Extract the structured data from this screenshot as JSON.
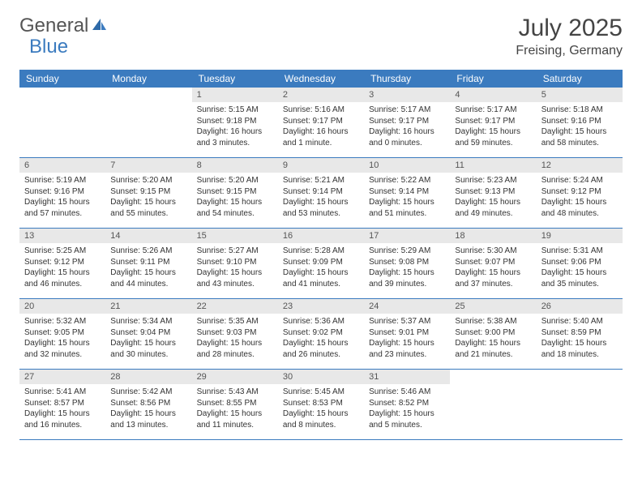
{
  "brand": {
    "part1": "General",
    "part2": "Blue"
  },
  "title": "July 2025",
  "location": "Freising, Germany",
  "colors": {
    "header_bg": "#3b7bbf",
    "daynum_bg": "#e8e8e8",
    "border": "#3b7bbf",
    "text": "#333333",
    "brand_gray": "#555555",
    "brand_blue": "#3b7bbf"
  },
  "weekdays": [
    "Sunday",
    "Monday",
    "Tuesday",
    "Wednesday",
    "Thursday",
    "Friday",
    "Saturday"
  ],
  "weeks": [
    [
      null,
      null,
      {
        "n": "1",
        "sr": "5:15 AM",
        "ss": "9:18 PM",
        "dl": "16 hours and 3 minutes."
      },
      {
        "n": "2",
        "sr": "5:16 AM",
        "ss": "9:17 PM",
        "dl": "16 hours and 1 minute."
      },
      {
        "n": "3",
        "sr": "5:17 AM",
        "ss": "9:17 PM",
        "dl": "16 hours and 0 minutes."
      },
      {
        "n": "4",
        "sr": "5:17 AM",
        "ss": "9:17 PM",
        "dl": "15 hours and 59 minutes."
      },
      {
        "n": "5",
        "sr": "5:18 AM",
        "ss": "9:16 PM",
        "dl": "15 hours and 58 minutes."
      }
    ],
    [
      {
        "n": "6",
        "sr": "5:19 AM",
        "ss": "9:16 PM",
        "dl": "15 hours and 57 minutes."
      },
      {
        "n": "7",
        "sr": "5:20 AM",
        "ss": "9:15 PM",
        "dl": "15 hours and 55 minutes."
      },
      {
        "n": "8",
        "sr": "5:20 AM",
        "ss": "9:15 PM",
        "dl": "15 hours and 54 minutes."
      },
      {
        "n": "9",
        "sr": "5:21 AM",
        "ss": "9:14 PM",
        "dl": "15 hours and 53 minutes."
      },
      {
        "n": "10",
        "sr": "5:22 AM",
        "ss": "9:14 PM",
        "dl": "15 hours and 51 minutes."
      },
      {
        "n": "11",
        "sr": "5:23 AM",
        "ss": "9:13 PM",
        "dl": "15 hours and 49 minutes."
      },
      {
        "n": "12",
        "sr": "5:24 AM",
        "ss": "9:12 PM",
        "dl": "15 hours and 48 minutes."
      }
    ],
    [
      {
        "n": "13",
        "sr": "5:25 AM",
        "ss": "9:12 PM",
        "dl": "15 hours and 46 minutes."
      },
      {
        "n": "14",
        "sr": "5:26 AM",
        "ss": "9:11 PM",
        "dl": "15 hours and 44 minutes."
      },
      {
        "n": "15",
        "sr": "5:27 AM",
        "ss": "9:10 PM",
        "dl": "15 hours and 43 minutes."
      },
      {
        "n": "16",
        "sr": "5:28 AM",
        "ss": "9:09 PM",
        "dl": "15 hours and 41 minutes."
      },
      {
        "n": "17",
        "sr": "5:29 AM",
        "ss": "9:08 PM",
        "dl": "15 hours and 39 minutes."
      },
      {
        "n": "18",
        "sr": "5:30 AM",
        "ss": "9:07 PM",
        "dl": "15 hours and 37 minutes."
      },
      {
        "n": "19",
        "sr": "5:31 AM",
        "ss": "9:06 PM",
        "dl": "15 hours and 35 minutes."
      }
    ],
    [
      {
        "n": "20",
        "sr": "5:32 AM",
        "ss": "9:05 PM",
        "dl": "15 hours and 32 minutes."
      },
      {
        "n": "21",
        "sr": "5:34 AM",
        "ss": "9:04 PM",
        "dl": "15 hours and 30 minutes."
      },
      {
        "n": "22",
        "sr": "5:35 AM",
        "ss": "9:03 PM",
        "dl": "15 hours and 28 minutes."
      },
      {
        "n": "23",
        "sr": "5:36 AM",
        "ss": "9:02 PM",
        "dl": "15 hours and 26 minutes."
      },
      {
        "n": "24",
        "sr": "5:37 AM",
        "ss": "9:01 PM",
        "dl": "15 hours and 23 minutes."
      },
      {
        "n": "25",
        "sr": "5:38 AM",
        "ss": "9:00 PM",
        "dl": "15 hours and 21 minutes."
      },
      {
        "n": "26",
        "sr": "5:40 AM",
        "ss": "8:59 PM",
        "dl": "15 hours and 18 minutes."
      }
    ],
    [
      {
        "n": "27",
        "sr": "5:41 AM",
        "ss": "8:57 PM",
        "dl": "15 hours and 16 minutes."
      },
      {
        "n": "28",
        "sr": "5:42 AM",
        "ss": "8:56 PM",
        "dl": "15 hours and 13 minutes."
      },
      {
        "n": "29",
        "sr": "5:43 AM",
        "ss": "8:55 PM",
        "dl": "15 hours and 11 minutes."
      },
      {
        "n": "30",
        "sr": "5:45 AM",
        "ss": "8:53 PM",
        "dl": "15 hours and 8 minutes."
      },
      {
        "n": "31",
        "sr": "5:46 AM",
        "ss": "8:52 PM",
        "dl": "15 hours and 5 minutes."
      },
      null,
      null
    ]
  ],
  "labels": {
    "sunrise": "Sunrise:",
    "sunset": "Sunset:",
    "daylight": "Daylight:"
  }
}
